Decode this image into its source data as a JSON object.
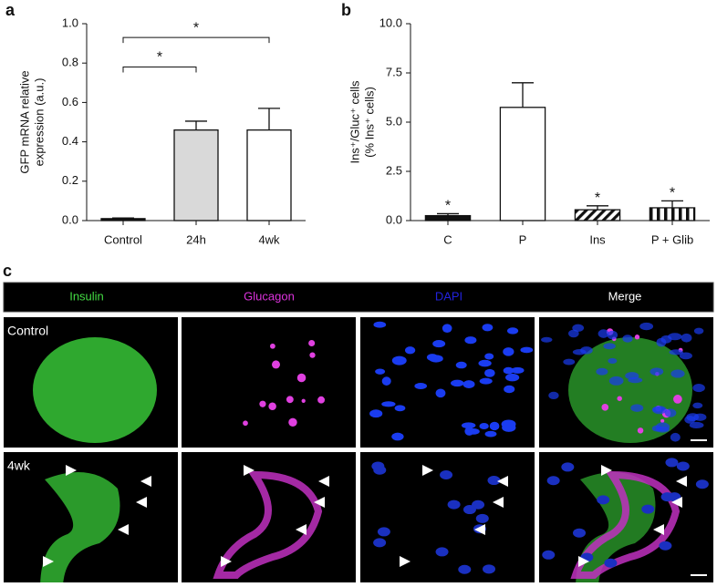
{
  "panel_labels": [
    "a",
    "b",
    "c"
  ],
  "chart_data": [
    {
      "type": "bar",
      "ylabel": [
        "GFP mRNA relative",
        "expression (a.u.)"
      ],
      "categories": [
        "Control",
        "24h",
        "4wk"
      ],
      "values": [
        0.01,
        0.46,
        0.46
      ],
      "errors": [
        0.003,
        0.045,
        0.11
      ],
      "colors": [
        "#111111",
        "#d9d9d9",
        "#ffffff"
      ],
      "ylim": [
        0,
        1
      ],
      "yticks": [
        {
          "value": 0,
          "label": "0.0"
        },
        0.2,
        0.4,
        0.6,
        0.8,
        {
          "value": 1,
          "label": "1.0"
        }
      ],
      "brackets": [
        {
          "from": 0,
          "to": 1,
          "y": 0.78,
          "text": "*"
        },
        {
          "from": 0,
          "to": 2,
          "y": 0.93,
          "text": "*"
        }
      ]
    },
    {
      "type": "bar",
      "ylabel": [
        "Ins⁺/Gluc⁺ cells",
        "(% Ins⁺ cells)"
      ],
      "categories": [
        "C",
        "P",
        "Ins",
        "P + Glib"
      ],
      "values": [
        0.25,
        5.75,
        0.55,
        0.65
      ],
      "errors": [
        0.1,
        1.25,
        0.2,
        0.35
      ],
      "colors": [
        "#111111",
        "#ffffff",
        "#ffffff",
        "#ffffff"
      ],
      "patterns": [
        "solid",
        "solid",
        "diagonal",
        "vertical"
      ],
      "ylim": [
        0,
        10
      ],
      "yticks": [
        {
          "value": 0,
          "label": "0.0"
        },
        2.5,
        {
          "value": 5,
          "label": "5.0"
        },
        7.5,
        {
          "value": 10,
          "label": "10.0"
        }
      ],
      "bar_labels": [
        "*",
        null,
        "*",
        "*"
      ]
    }
  ],
  "images": {
    "columns": [
      {
        "label": "Insulin",
        "color": "#44dd44"
      },
      {
        "label": "Glucagon",
        "color": "#dd33dd"
      },
      {
        "label": "DAPI",
        "color": "#2222dd"
      },
      {
        "label": "Merge",
        "color": "#ffffff"
      }
    ],
    "rows": [
      "Control",
      "4wk"
    ]
  }
}
